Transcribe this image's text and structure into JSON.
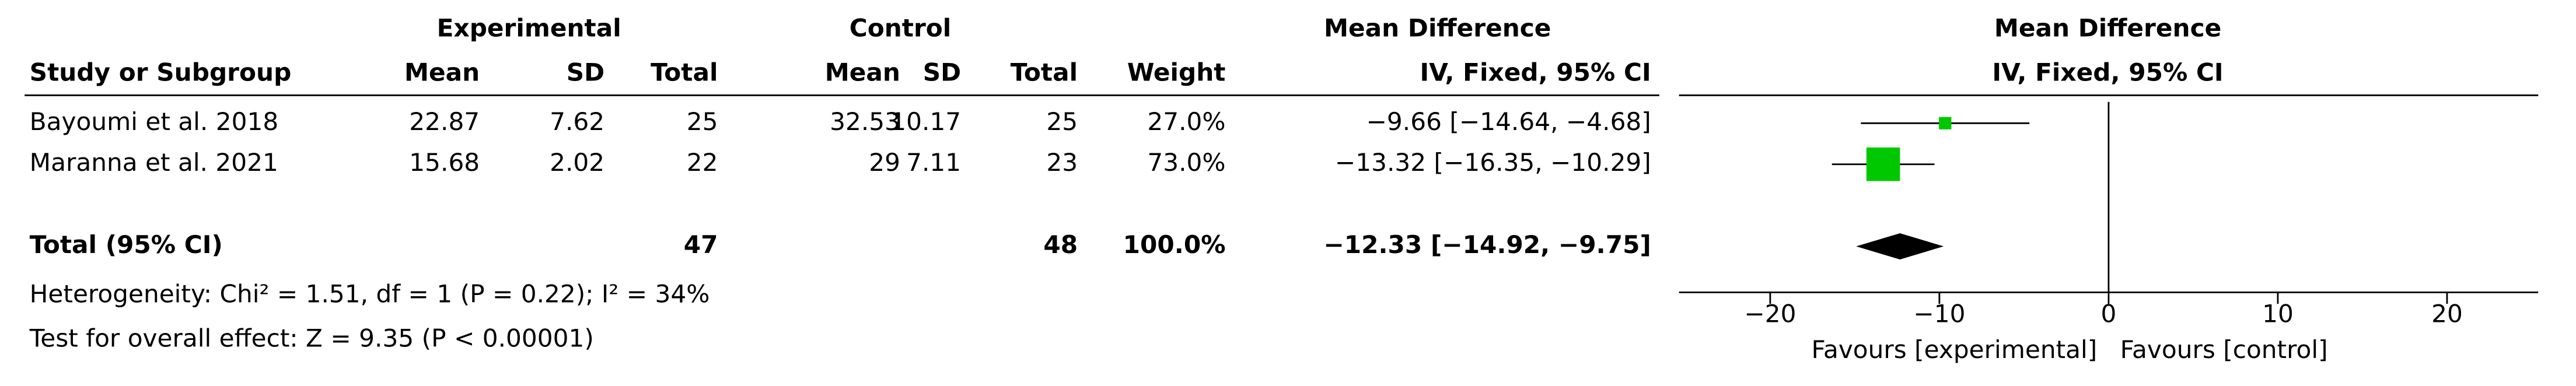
{
  "chart_data": {
    "type": "forest",
    "header": {
      "experimental": "Experimental",
      "control": "Control",
      "md_table": "Mean Difference",
      "md_table_sub": "IV, Fixed, 95% CI",
      "md_plot": "Mean Difference",
      "md_plot_sub": "IV, Fixed, 95% CI",
      "study": "Study or Subgroup",
      "exp_mean": "Mean",
      "exp_sd": "SD",
      "exp_total": "Total",
      "ctrl_mean": "Mean",
      "ctrl_sd": "SD",
      "ctrl_total": "Total",
      "weight": "Weight"
    },
    "studies": [
      {
        "name": "Bayoumi et al. 2018",
        "exp_mean": 22.87,
        "exp_sd": 7.62,
        "exp_total": 25,
        "ctrl_mean": 32.53,
        "ctrl_sd": 10.17,
        "ctrl_total": 25,
        "weight": 27.0,
        "weight_label": "27.0%",
        "md": -9.66,
        "ci": [
          -14.64,
          -4.68
        ],
        "md_label": "−9.66 [−14.64, −4.68]"
      },
      {
        "name": "Maranna et al. 2021",
        "exp_mean": 15.68,
        "exp_sd": 2.02,
        "exp_total": 22,
        "ctrl_mean": 29,
        "ctrl_sd": 7.11,
        "ctrl_total": 23,
        "weight": 73.0,
        "weight_label": "73.0%",
        "md": -13.32,
        "ci": [
          -16.35,
          -10.29
        ],
        "md_label": "−13.32 [−16.35, −10.29]"
      }
    ],
    "total": {
      "name": "Total (95% CI)",
      "exp_total": 47,
      "ctrl_total": 48,
      "weight": 100.0,
      "weight_label": "100.0%",
      "md": -12.33,
      "ci": [
        -14.92,
        -9.75
      ],
      "md_label": "−12.33 [−14.92, −9.75]"
    },
    "heterogeneity": "Heterogeneity: Chi² = 1.51, df = 1 (P = 0.22); I² = 34%",
    "overall_effect": "Test for overall effect: Z = 9.35 (P < 0.00001)",
    "xlim": [
      -25,
      25
    ],
    "xticks": [
      {
        "value": -20,
        "label": "−20"
      },
      {
        "value": -10,
        "label": "−10"
      },
      0,
      10,
      20
    ],
    "favours_left": "Favours [experimental]",
    "favours_right": "Favours [control]",
    "marker_color": "#00c800",
    "diamond_color": "#000000"
  }
}
